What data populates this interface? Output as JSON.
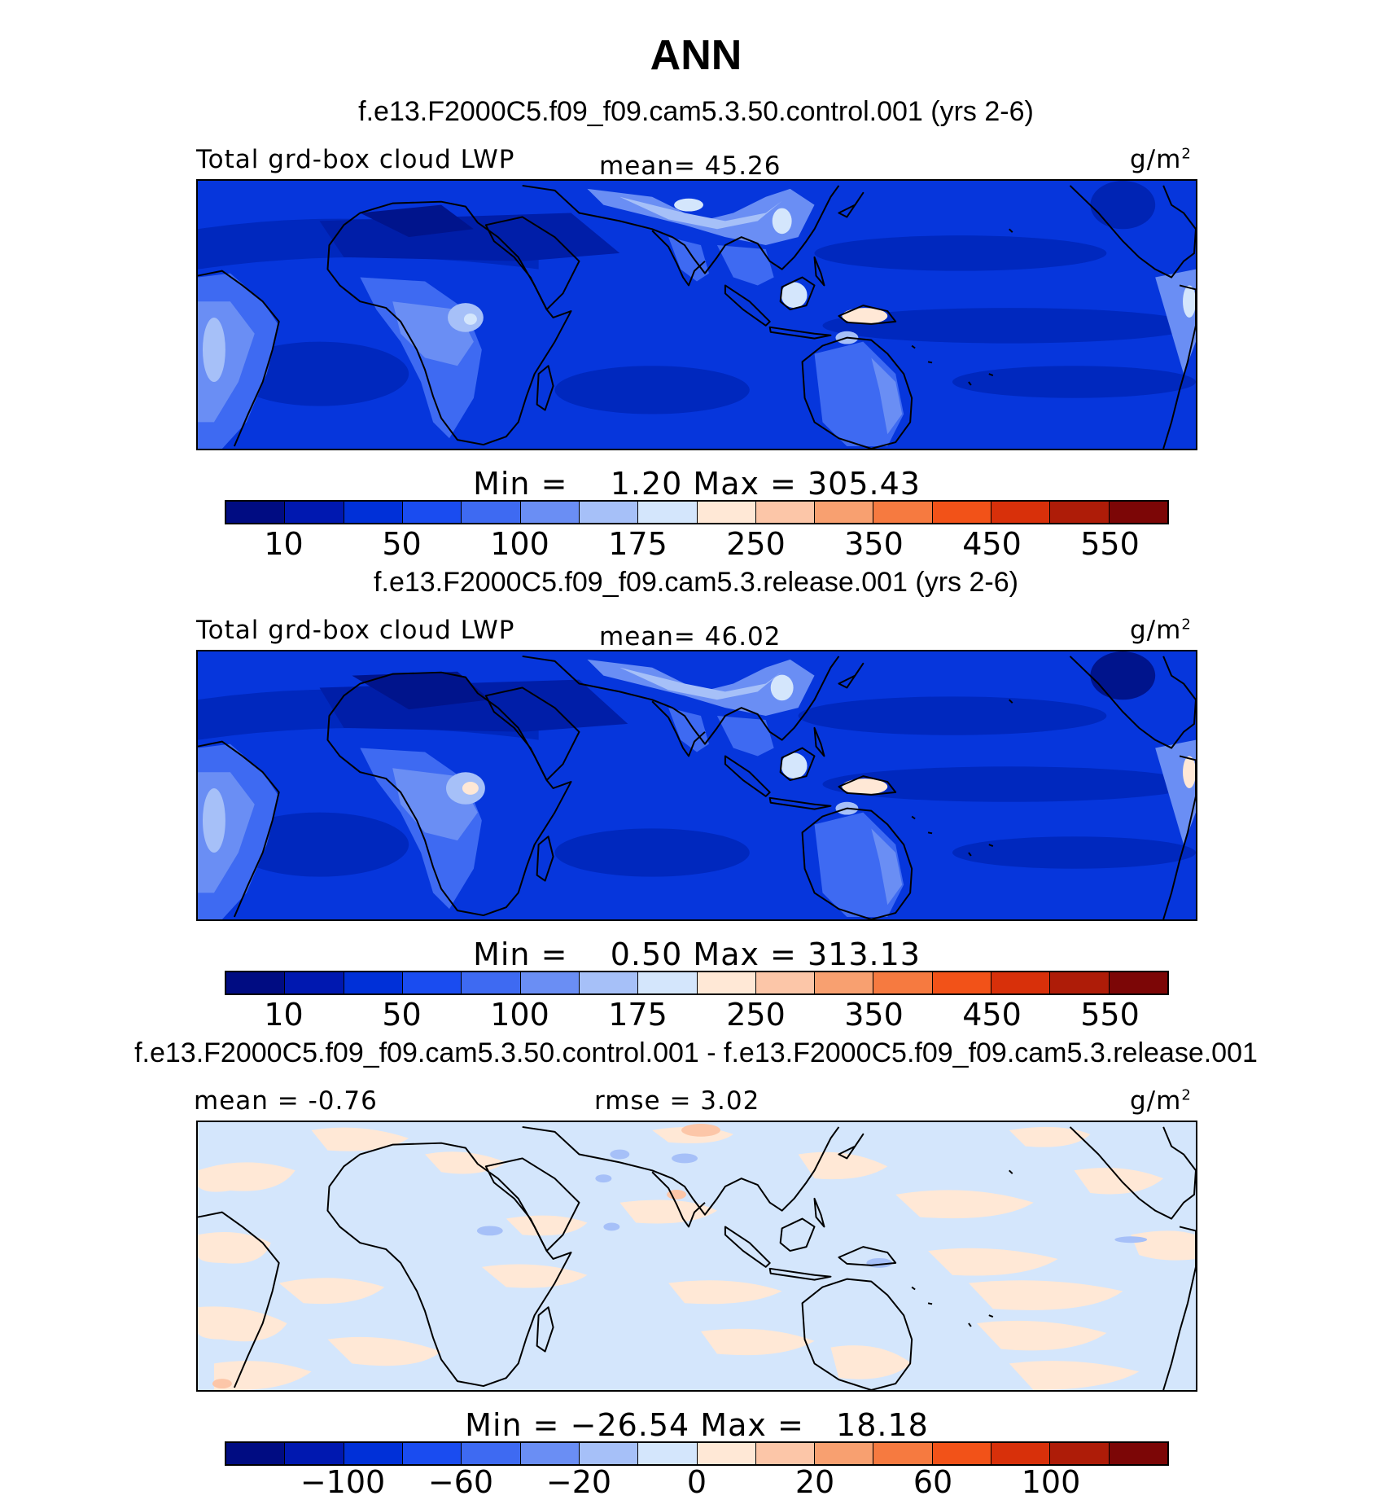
{
  "title": "ANN",
  "colorbar_colors": [
    "#000c82",
    "#0018b0",
    "#0030d8",
    "#1a4cf0",
    "#3e6af2",
    "#6a8ef4",
    "#a6c0f8",
    "#d4e6fc",
    "#ffe8d6",
    "#fcc6a8",
    "#f8a070",
    "#f67a40",
    "#f25218",
    "#d8300a",
    "#ae1c08",
    "#7c0606"
  ],
  "panels": [
    {
      "case": "f.e13.F2000C5.f09_f09.cam5.3.50.control.001 (yrs 2-6)",
      "left_label": "Total grd-box cloud LWP",
      "center_label": "mean=  45.26",
      "units": "g/m",
      "units_sup": "2",
      "minmax": "Min =    1.20 Max = 305.43",
      "tick_labels": [
        "10",
        "50",
        "100",
        "175",
        "250",
        "350",
        "450",
        "550"
      ],
      "variant": "field"
    },
    {
      "case": "f.e13.F2000C5.f09_f09.cam5.3.release.001 (yrs 2-6)",
      "left_label": "Total grd-box cloud LWP",
      "center_label": "mean=  46.02",
      "units": "g/m",
      "units_sup": "2",
      "minmax": "Min =    0.50 Max = 313.13",
      "tick_labels": [
        "10",
        "50",
        "100",
        "175",
        "250",
        "350",
        "450",
        "550"
      ],
      "variant": "field"
    },
    {
      "case": "f.e13.F2000C5.f09_f09.cam5.3.50.control.001 - f.e13.F2000C5.f09_f09.cam5.3.release.001",
      "left_label": "mean =  -0.76",
      "center_label": "rmse =    3.02",
      "units": "g/m",
      "units_sup": "2",
      "minmax": "Min = −26.54 Max =   18.18",
      "tick_labels": [
        "−100",
        "−60",
        "−20",
        "0",
        "20",
        "60",
        "100"
      ],
      "variant": "diff"
    }
  ]
}
